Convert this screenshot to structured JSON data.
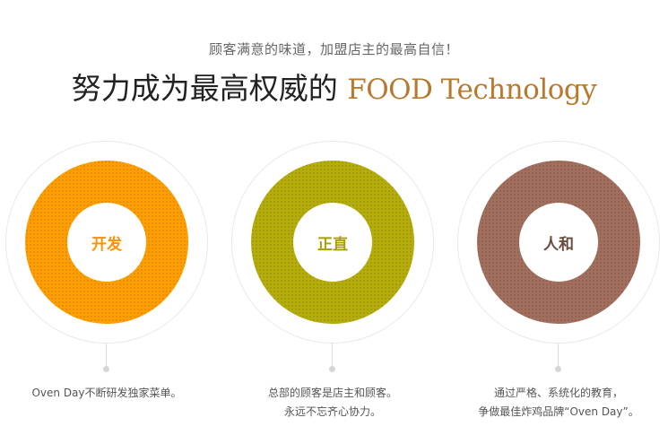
{
  "header": {
    "subtitle": "顾客满意的味道，加盟店主的最高自信！",
    "title_main": "努力成为最高权威的",
    "title_accent": "FOOD Technology"
  },
  "colors": {
    "accent": "#b7792f",
    "orange": "#ff9e00",
    "olive": "#b5ad0a",
    "brown": "#a26f5e"
  },
  "cards": [
    {
      "label": "开发",
      "color": "#ff9e00",
      "label_color": "#ff9000",
      "lines": [
        "Oven Day不断研发独家菜单。"
      ]
    },
    {
      "label": "正直",
      "color": "#b5ad0a",
      "label_color": "#a8a000",
      "lines": [
        "总部的顾客是店主和顾客。",
        "永远不忘齐心协力。"
      ]
    },
    {
      "label": "人和",
      "color": "#a26f5e",
      "label_color": "#6b4a3e",
      "lines": [
        "通过严格、系统化的教育，",
        "争做最佳炸鸡品牌“Oven Day”。"
      ]
    }
  ]
}
